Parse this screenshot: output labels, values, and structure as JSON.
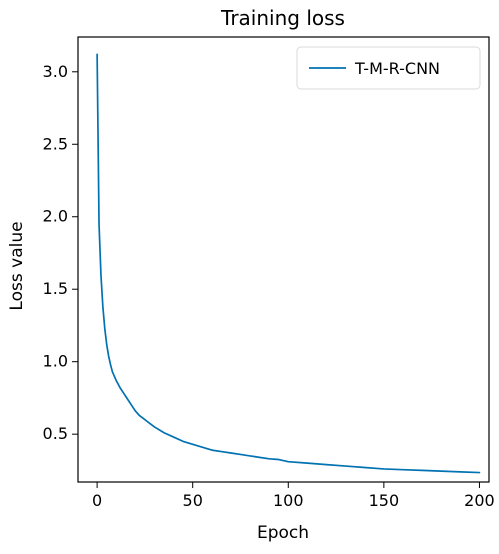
{
  "chart_data": {
    "type": "line",
    "title": "Training loss",
    "xlabel": "Epoch",
    "ylabel": "Loss value",
    "xlim": [
      -10,
      205
    ],
    "ylim": [
      0.17,
      3.24
    ],
    "x_ticks": [
      0,
      50,
      100,
      150,
      200
    ],
    "y_ticks": [
      0.5,
      1.0,
      1.5,
      2.0,
      2.5,
      3.0
    ],
    "x_tick_labels": [
      "0",
      "50",
      "100",
      "150",
      "200"
    ],
    "y_tick_labels": [
      "0.5",
      "1.0",
      "1.5",
      "2.0",
      "2.5",
      "3.0"
    ],
    "grid": false,
    "legend": {
      "placement": "top-right",
      "entries": [
        "T-M-R-CNN"
      ]
    },
    "series": [
      {
        "name": "T-M-R-CNN",
        "color": "#0072b2",
        "x": [
          0,
          1,
          2,
          3,
          4,
          5,
          6,
          7,
          8,
          9,
          10,
          12,
          14,
          16,
          18,
          20,
          22,
          24,
          26,
          28,
          30,
          35,
          40,
          45,
          50,
          55,
          60,
          65,
          70,
          75,
          80,
          85,
          90,
          95,
          100,
          110,
          120,
          130,
          140,
          150,
          160,
          170,
          180,
          190,
          200
        ],
        "values": [
          3.12,
          1.95,
          1.6,
          1.38,
          1.23,
          1.12,
          1.04,
          0.98,
          0.93,
          0.9,
          0.87,
          0.82,
          0.78,
          0.74,
          0.7,
          0.66,
          0.63,
          0.61,
          0.59,
          0.57,
          0.55,
          0.51,
          0.48,
          0.45,
          0.43,
          0.41,
          0.39,
          0.38,
          0.37,
          0.36,
          0.35,
          0.34,
          0.33,
          0.325,
          0.31,
          0.3,
          0.29,
          0.28,
          0.27,
          0.26,
          0.255,
          0.25,
          0.245,
          0.24,
          0.235
        ]
      }
    ]
  }
}
